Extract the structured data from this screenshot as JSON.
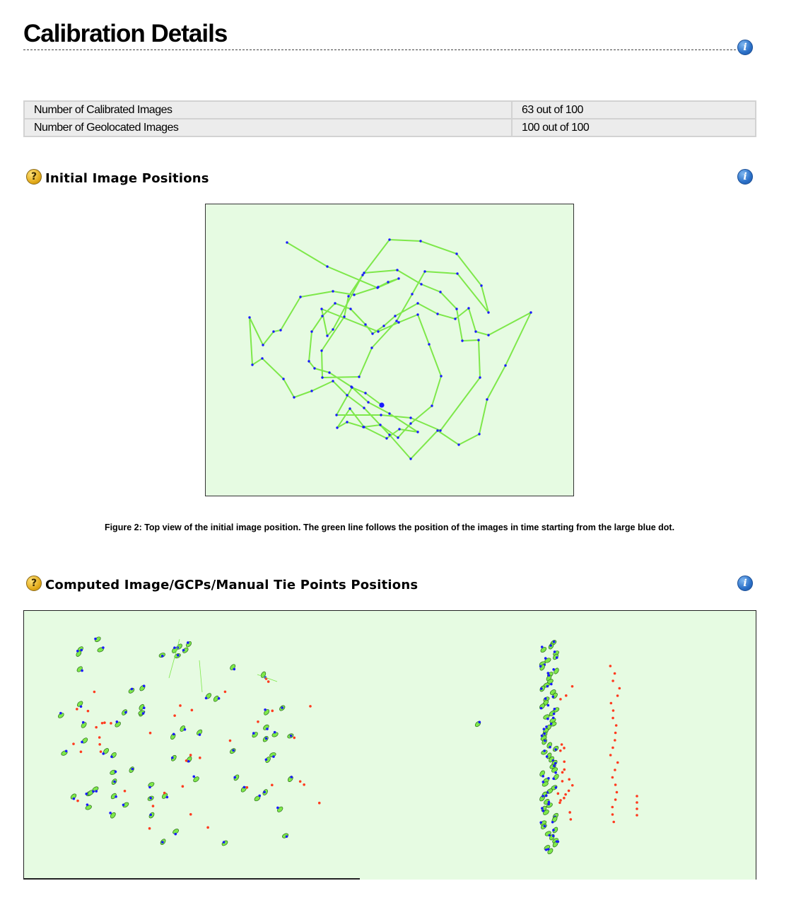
{
  "page": {
    "title": "Calibration Details"
  },
  "icons": {
    "info": "info-icon",
    "help": "help-question-icon",
    "info_glyph": "i",
    "help_glyph": "?"
  },
  "summary": {
    "rows": [
      {
        "label": "Number of Calibrated Images",
        "value": "63 out of 100"
      },
      {
        "label": "Number of Geolocated Images",
        "value": "100 out of 100"
      }
    ]
  },
  "sections": {
    "initial": {
      "title": "Initial Image Positions"
    },
    "computed": {
      "title": "Computed Image/GCPs/Manual Tie Points Positions"
    }
  },
  "figure2": {
    "caption": "Figure 2: Top view of the initial image position. The green line follows the position of the images in time starting from the large blue dot."
  },
  "colors": {
    "plot_background": "#e6fbe2",
    "path_line": "#7ee84a",
    "image_point": "#1a1aff",
    "computed_ellipse": "#7ee84a",
    "uncalibrated_point": "#ff3b1f"
  }
}
